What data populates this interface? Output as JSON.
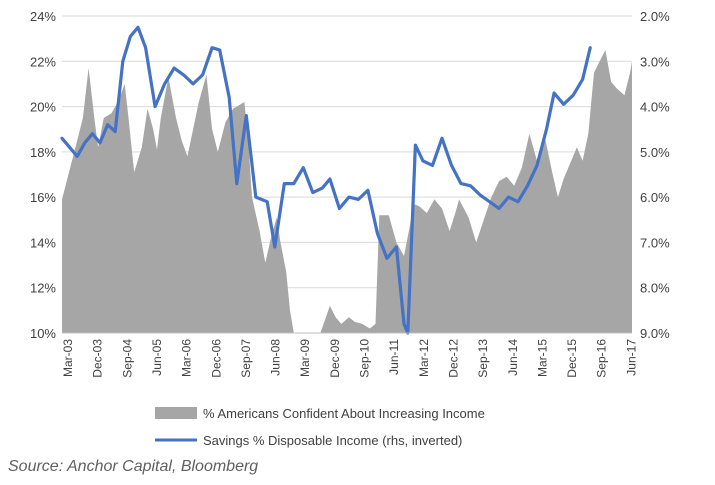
{
  "chart_data": {
    "type": "area",
    "title": "",
    "xlabel": "",
    "ylabel": "",
    "y_left": {
      "min": 10,
      "max": 24,
      "ticks": [
        "10%",
        "12%",
        "14%",
        "16%",
        "18%",
        "20%",
        "22%",
        "24%"
      ]
    },
    "y_right": {
      "min": 2.0,
      "max": 9.0,
      "inverted": true,
      "ticks": [
        "2.0%",
        "3.0%",
        "4.0%",
        "5.0%",
        "6.0%",
        "7.0%",
        "8.0%",
        "9.0%"
      ]
    },
    "x_ticks": [
      "Mar-03",
      "Dec-03",
      "Sep-04",
      "Jun-05",
      "Mar-06",
      "Dec-06",
      "Sep-07",
      "Jun-08",
      "Mar-09",
      "Dec-09",
      "Sep-10",
      "Jun-11",
      "Mar-12",
      "Dec-12",
      "Sep-13",
      "Jun-14",
      "Mar-15",
      "Dec-15",
      "Sep-16",
      "Jun-17"
    ],
    "x_start": 2003.0,
    "x_end": 2018.0,
    "series": [
      {
        "name": "% Americans Confident About Increasing Income",
        "kind": "area",
        "axis": "left",
        "color": "#a6a6a6",
        "points": [
          [
            2003.0,
            15.9
          ],
          [
            2003.2,
            17.2
          ],
          [
            2003.4,
            18.5
          ],
          [
            2003.55,
            19.5
          ],
          [
            2003.7,
            21.7
          ],
          [
            2003.85,
            19.5
          ],
          [
            2003.95,
            18.2
          ],
          [
            2004.1,
            19.5
          ],
          [
            2004.3,
            19.7
          ],
          [
            2004.5,
            20.3
          ],
          [
            2004.65,
            21.0
          ],
          [
            2004.75,
            19.5
          ],
          [
            2004.9,
            17.1
          ],
          [
            2005.1,
            18.2
          ],
          [
            2005.25,
            19.9
          ],
          [
            2005.4,
            19.0
          ],
          [
            2005.5,
            18.1
          ],
          [
            2005.6,
            19.5
          ],
          [
            2005.8,
            21.3
          ],
          [
            2006.0,
            19.5
          ],
          [
            2006.15,
            18.5
          ],
          [
            2006.3,
            17.8
          ],
          [
            2006.45,
            19.0
          ],
          [
            2006.6,
            20.2
          ],
          [
            2006.8,
            21.4
          ],
          [
            2006.95,
            19.0
          ],
          [
            2007.1,
            18.0
          ],
          [
            2007.3,
            19.3
          ],
          [
            2007.5,
            19.9
          ],
          [
            2007.7,
            20.1
          ],
          [
            2007.8,
            20.2
          ],
          [
            2007.9,
            18.5
          ],
          [
            2008.0,
            16.0
          ],
          [
            2008.2,
            14.5
          ],
          [
            2008.35,
            13.1
          ],
          [
            2008.5,
            14.2
          ],
          [
            2008.65,
            15.1
          ],
          [
            2008.75,
            14.0
          ],
          [
            2008.9,
            12.7
          ],
          [
            2009.0,
            11.0
          ],
          [
            2009.1,
            10.0
          ],
          [
            2009.8,
            10.0
          ],
          [
            2010.05,
            11.2
          ],
          [
            2010.2,
            10.7
          ],
          [
            2010.35,
            10.4
          ],
          [
            2010.55,
            10.7
          ],
          [
            2010.7,
            10.5
          ],
          [
            2010.9,
            10.4
          ],
          [
            2011.1,
            10.2
          ],
          [
            2011.25,
            10.4
          ],
          [
            2011.35,
            15.2
          ],
          [
            2011.6,
            15.2
          ],
          [
            2011.8,
            14.0
          ],
          [
            2012.0,
            13.4
          ],
          [
            2012.15,
            14.7
          ],
          [
            2012.25,
            15.7
          ],
          [
            2012.4,
            15.6
          ],
          [
            2012.6,
            15.3
          ],
          [
            2012.8,
            15.9
          ],
          [
            2013.0,
            15.5
          ],
          [
            2013.2,
            14.5
          ],
          [
            2013.35,
            15.3
          ],
          [
            2013.45,
            15.9
          ],
          [
            2013.7,
            15.1
          ],
          [
            2013.9,
            14.0
          ],
          [
            2014.1,
            15.0
          ],
          [
            2014.3,
            16.0
          ],
          [
            2014.5,
            16.7
          ],
          [
            2014.7,
            16.9
          ],
          [
            2014.9,
            16.5
          ],
          [
            2015.1,
            17.3
          ],
          [
            2015.3,
            18.8
          ],
          [
            2015.5,
            17.6
          ],
          [
            2015.7,
            18.7
          ],
          [
            2015.9,
            17.1
          ],
          [
            2016.05,
            16.0
          ],
          [
            2016.2,
            16.8
          ],
          [
            2016.4,
            17.6
          ],
          [
            2016.55,
            18.2
          ],
          [
            2016.7,
            17.6
          ],
          [
            2016.85,
            18.8
          ],
          [
            2017.0,
            21.5
          ],
          [
            2017.15,
            22.0
          ],
          [
            2017.3,
            22.5
          ],
          [
            2017.45,
            21.1
          ],
          [
            2017.6,
            20.8
          ],
          [
            2017.8,
            20.5
          ],
          [
            2017.95,
            21.5
          ],
          [
            2018.0,
            22.0
          ],
          [
            2018.0,
            10.0
          ]
        ]
      },
      {
        "name": "Savings % Disposable Income (rhs, inverted)",
        "kind": "line",
        "axis": "right",
        "color": "#4472c4",
        "points": [
          [
            2003.0,
            4.7
          ],
          [
            2003.2,
            4.9
          ],
          [
            2003.4,
            5.1
          ],
          [
            2003.6,
            4.8
          ],
          [
            2003.8,
            4.6
          ],
          [
            2004.0,
            4.8
          ],
          [
            2004.2,
            4.4
          ],
          [
            2004.4,
            4.55
          ],
          [
            2004.6,
            3.0
          ],
          [
            2004.8,
            2.45
          ],
          [
            2005.0,
            2.25
          ],
          [
            2005.2,
            2.7
          ],
          [
            2005.45,
            4.0
          ],
          [
            2005.7,
            3.5
          ],
          [
            2005.95,
            3.15
          ],
          [
            2006.2,
            3.3
          ],
          [
            2006.45,
            3.5
          ],
          [
            2006.7,
            3.3
          ],
          [
            2006.95,
            2.7
          ],
          [
            2007.15,
            2.75
          ],
          [
            2007.4,
            3.8
          ],
          [
            2007.6,
            5.7
          ],
          [
            2007.85,
            4.2
          ],
          [
            2008.1,
            6.0
          ],
          [
            2008.4,
            6.1
          ],
          [
            2008.6,
            7.1
          ],
          [
            2008.85,
            5.7
          ],
          [
            2009.1,
            5.7
          ],
          [
            2009.35,
            5.35
          ],
          [
            2009.6,
            5.9
          ],
          [
            2009.85,
            5.8
          ],
          [
            2010.05,
            5.6
          ],
          [
            2010.3,
            6.25
          ],
          [
            2010.55,
            6.0
          ],
          [
            2010.8,
            6.05
          ],
          [
            2011.05,
            5.85
          ],
          [
            2011.3,
            6.8
          ],
          [
            2011.55,
            7.35
          ],
          [
            2011.8,
            7.1
          ],
          [
            2012.0,
            8.8
          ],
          [
            2012.1,
            9.0
          ],
          [
            2012.3,
            4.85
          ],
          [
            2012.5,
            5.2
          ],
          [
            2012.75,
            5.3
          ],
          [
            2013.0,
            4.7
          ],
          [
            2013.25,
            5.3
          ],
          [
            2013.5,
            5.7
          ],
          [
            2013.75,
            5.75
          ],
          [
            2014.0,
            5.95
          ],
          [
            2014.25,
            6.1
          ],
          [
            2014.5,
            6.25
          ],
          [
            2014.75,
            6.0
          ],
          [
            2015.0,
            6.1
          ],
          [
            2015.25,
            5.75
          ],
          [
            2015.5,
            5.3
          ],
          [
            2015.75,
            4.5
          ],
          [
            2015.95,
            3.7
          ],
          [
            2016.2,
            3.95
          ],
          [
            2016.45,
            3.75
          ],
          [
            2016.7,
            3.4
          ],
          [
            2016.9,
            2.7
          ]
        ]
      }
    ],
    "legend_position": "bottom",
    "grid": true
  },
  "legend": {
    "area_label": "% Americans Confident About Increasing Income",
    "line_label": "Savings % Disposable Income (rhs, inverted)"
  },
  "source_text": "Source: Anchor Capital, Bloomberg"
}
